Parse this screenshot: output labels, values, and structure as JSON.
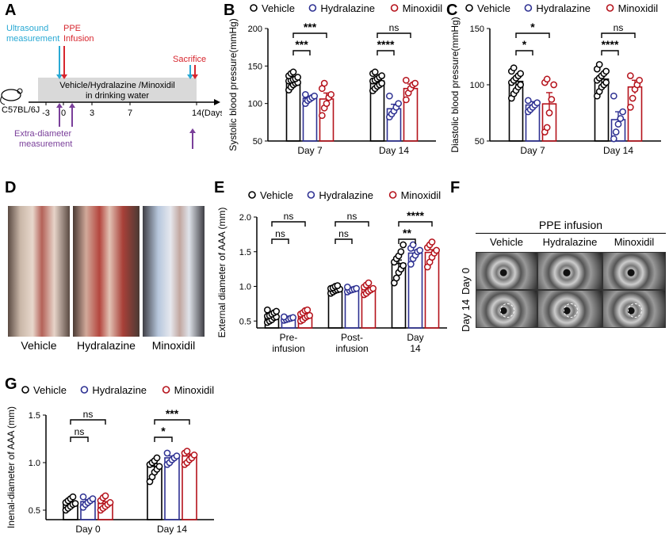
{
  "panel_letters": {
    "A": "A",
    "B": "B",
    "C": "C",
    "D": "D",
    "E": "E",
    "F": "F",
    "G": "G"
  },
  "legend": {
    "vehicle": "Vehicle",
    "hydralazine": "Hydralazine",
    "minoxidil": "Minoxidil"
  },
  "colors": {
    "vehicle": "#000000",
    "hydralazine": "#2e3192",
    "minoxidil": "#b5121b",
    "timeline_box": "#d9d9d9",
    "ultrasound": "#29a9d4",
    "ppe": "#d7262e",
    "extra": "#7a3f9a"
  },
  "panel_a": {
    "mouse_label": "C57BL/6J",
    "ultrasound": "Ultrasound\nmeasurement",
    "ppe": "PPE\nInfusion",
    "sacrifice": "Sacrifice",
    "treatment": "Vehicle/Hydralazine /Minoxidil\nin drinking water",
    "ticks": [
      "-3",
      "0",
      "3",
      "7",
      "14(Days)"
    ],
    "extra": "Extra-diameter\nmeasurement"
  },
  "panel_d": {
    "captions": [
      "Vehicle",
      "Hydralazine",
      "Minoxidil"
    ]
  },
  "panel_f": {
    "title": "PPE infusion",
    "cols": [
      "Vehicle",
      "Hydralazine",
      "Minoxidil"
    ],
    "rows": [
      "Day 0",
      "Day 14"
    ]
  },
  "chart_data": [
    {
      "id": "B",
      "type": "bar",
      "ylabel": "Systolic blood pressure(mmHg)",
      "ylim": [
        50,
        200
      ],
      "yticks": [
        50,
        100,
        150,
        200
      ],
      "categories": [
        "Day 7",
        "Day 14"
      ],
      "series": [
        {
          "name": "Vehicle",
          "values": [
            130,
            130
          ],
          "sem": [
            3,
            3
          ]
        },
        {
          "name": "Hydralazine",
          "values": [
            107,
            93
          ],
          "sem": [
            3,
            6
          ]
        },
        {
          "name": "Minoxidil",
          "values": [
            106,
            120
          ],
          "sem": [
            8,
            6
          ]
        }
      ],
      "points": [
        [
          [
            118,
            122,
            125,
            127,
            128,
            130,
            131,
            132,
            133,
            135,
            137,
            140,
            142
          ],
          [
            100,
            104,
            106,
            108,
            110,
            112
          ],
          [
            84,
            94,
            100,
            108,
            112,
            120,
            127
          ]
        ],
        [
          [
            117,
            120,
            123,
            125,
            127,
            130,
            131,
            133,
            135,
            137,
            140,
            142
          ],
          [
            82,
            86,
            90,
            95,
            100,
            110
          ],
          [
            105,
            114,
            120,
            125,
            127,
            131
          ]
        ]
      ],
      "annotations": [
        {
          "pair": [
            "Day 7 Vehicle",
            "Day 7 Minoxidil"
          ],
          "text": "***"
        },
        {
          "pair": [
            "Day 7 Vehicle",
            "Day 7 Hydralazine"
          ],
          "text": "***"
        },
        {
          "pair": [
            "Day 14 Vehicle",
            "Day 14 Minoxidil"
          ],
          "text": "ns"
        },
        {
          "pair": [
            "Day 14 Vehicle",
            "Day 14 Hydralazine"
          ],
          "text": "****"
        }
      ]
    },
    {
      "id": "C",
      "type": "bar",
      "ylabel": "Diastolic blood pressure(mmHg)",
      "ylim": [
        50,
        150
      ],
      "yticks": [
        50,
        100,
        150
      ],
      "categories": [
        "Day 7",
        "Day 14"
      ],
      "series": [
        {
          "name": "Vehicle",
          "values": [
            103,
            105
          ],
          "sem": [
            3,
            3
          ]
        },
        {
          "name": "Hydralazine",
          "values": [
            82,
            69
          ],
          "sem": [
            3,
            7
          ]
        },
        {
          "name": "Minoxidil",
          "values": [
            83,
            98
          ],
          "sem": [
            10,
            6
          ]
        }
      ],
      "points": [
        [
          [
            88,
            92,
            95,
            98,
            100,
            102,
            104,
            106,
            108,
            110,
            112,
            115
          ],
          [
            76,
            78,
            80,
            82,
            84,
            86
          ],
          [
            58,
            62,
            75,
            87,
            100,
            102,
            105
          ]
        ],
        [
          [
            90,
            94,
            98,
            100,
            102,
            104,
            106,
            108,
            110,
            112,
            114,
            118
          ],
          [
            52,
            58,
            65,
            70,
            76,
            90
          ],
          [
            80,
            88,
            96,
            100,
            104,
            108
          ]
        ]
      ],
      "annotations": [
        {
          "pair": [
            "Day 7 Vehicle",
            "Day 7 Minoxidil"
          ],
          "text": "*"
        },
        {
          "pair": [
            "Day 7 Vehicle",
            "Day 7 Hydralazine"
          ],
          "text": "*"
        },
        {
          "pair": [
            "Day 14 Vehicle",
            "Day 14 Minoxidil"
          ],
          "text": "ns"
        },
        {
          "pair": [
            "Day 14 Vehicle",
            "Day 14 Hydralazine"
          ],
          "text": "****"
        }
      ]
    },
    {
      "id": "E",
      "type": "bar",
      "ylabel": "External diameter of AAA (mm)",
      "ylim": [
        0.4,
        2.0
      ],
      "yticks": [
        0.5,
        1.0,
        1.5,
        2.0
      ],
      "categories": [
        "Pre-\ninfusion",
        "Post-\ninfusion",
        "Day\n14"
      ],
      "series": [
        {
          "name": "Vehicle",
          "values": [
            0.57,
            0.96,
            1.33
          ],
          "sem": [
            0.02,
            0.01,
            0.05
          ]
        },
        {
          "name": "Hydralazine",
          "values": [
            0.54,
            0.96,
            1.48
          ],
          "sem": [
            0.01,
            0.01,
            0.04
          ]
        },
        {
          "name": "Minoxidil",
          "values": [
            0.58,
            0.96,
            1.49
          ],
          "sem": [
            0.02,
            0.02,
            0.04
          ]
        }
      ],
      "points": [
        [
          [
            0.48,
            0.5,
            0.52,
            0.55,
            0.56,
            0.57,
            0.58,
            0.6,
            0.62,
            0.64,
            0.66
          ],
          [
            0.51,
            0.52,
            0.53,
            0.54,
            0.55,
            0.56
          ],
          [
            0.5,
            0.52,
            0.55,
            0.57,
            0.58,
            0.6,
            0.62,
            0.65,
            0.66
          ]
        ],
        [
          [
            0.9,
            0.92,
            0.94,
            0.95,
            0.96,
            0.97,
            0.98,
            1.0,
            1.01
          ],
          [
            0.92,
            0.94,
            0.95,
            0.96,
            0.97,
            0.99
          ],
          [
            0.88,
            0.9,
            0.93,
            0.95,
            0.97,
            0.99,
            1.02,
            1.05
          ]
        ],
        [
          [
            1.05,
            1.12,
            1.2,
            1.25,
            1.3,
            1.35,
            1.4,
            1.44,
            1.5,
            1.6
          ],
          [
            1.32,
            1.4,
            1.45,
            1.5,
            1.52,
            1.55,
            1.6
          ],
          [
            1.28,
            1.35,
            1.42,
            1.48,
            1.52,
            1.56,
            1.6,
            1.64
          ]
        ]
      ],
      "annotations": [
        {
          "pair": [
            "Pre-infusion Vehicle",
            "Pre-infusion Minoxidil"
          ],
          "text": "ns"
        },
        {
          "pair": [
            "Pre-infusion Vehicle",
            "Pre-infusion Hydralazine"
          ],
          "text": "ns"
        },
        {
          "pair": [
            "Post-infusion Vehicle",
            "Post-infusion Minoxidil"
          ],
          "text": "ns"
        },
        {
          "pair": [
            "Post-infusion Vehicle",
            "Post-infusion Hydralazine"
          ],
          "text": "ns"
        },
        {
          "pair": [
            "Day 14 Vehicle",
            "Day 14 Minoxidil"
          ],
          "text": "****"
        },
        {
          "pair": [
            "Day 14 Vehicle",
            "Day 14 Hydralazine"
          ],
          "text": "**"
        }
      ]
    },
    {
      "id": "G",
      "type": "bar",
      "ylabel": "Inenal-diameter of AAA (mm)",
      "ylim": [
        0.4,
        1.5
      ],
      "yticks": [
        0.5,
        1.0,
        1.5
      ],
      "categories": [
        "Day 0",
        "Day 14"
      ],
      "series": [
        {
          "name": "Vehicle",
          "values": [
            0.57,
            0.96
          ],
          "sem": [
            0.02,
            0.03
          ]
        },
        {
          "name": "Hydralazine",
          "values": [
            0.59,
            1.05
          ],
          "sem": [
            0.02,
            0.02
          ]
        },
        {
          "name": "Minoxidil",
          "values": [
            0.57,
            1.07
          ],
          "sem": [
            0.02,
            0.02
          ]
        }
      ],
      "points": [
        [
          [
            0.5,
            0.52,
            0.54,
            0.56,
            0.57,
            0.58,
            0.6,
            0.62,
            0.64
          ],
          [
            0.53,
            0.56,
            0.58,
            0.6,
            0.62,
            0.64
          ],
          [
            0.5,
            0.52,
            0.54,
            0.56,
            0.58,
            0.6,
            0.63,
            0.65
          ]
        ],
        [
          [
            0.8,
            0.85,
            0.9,
            0.93,
            0.96,
            0.98,
            1.0,
            1.02,
            1.05
          ],
          [
            0.98,
            1.0,
            1.03,
            1.05,
            1.07,
            1.1
          ],
          [
            0.98,
            1.0,
            1.03,
            1.05,
            1.08,
            1.1,
            1.12
          ]
        ]
      ],
      "annotations": [
        {
          "pair": [
            "Day 0 Vehicle",
            "Day 0 Minoxidil"
          ],
          "text": "ns"
        },
        {
          "pair": [
            "Day 0 Vehicle",
            "Day 0 Hydralazine"
          ],
          "text": "ns"
        },
        {
          "pair": [
            "Day 14 Vehicle",
            "Day 14 Minoxidil"
          ],
          "text": "***"
        },
        {
          "pair": [
            "Day 14 Vehicle",
            "Day 14 Hydralazine"
          ],
          "text": "*"
        }
      ]
    }
  ]
}
